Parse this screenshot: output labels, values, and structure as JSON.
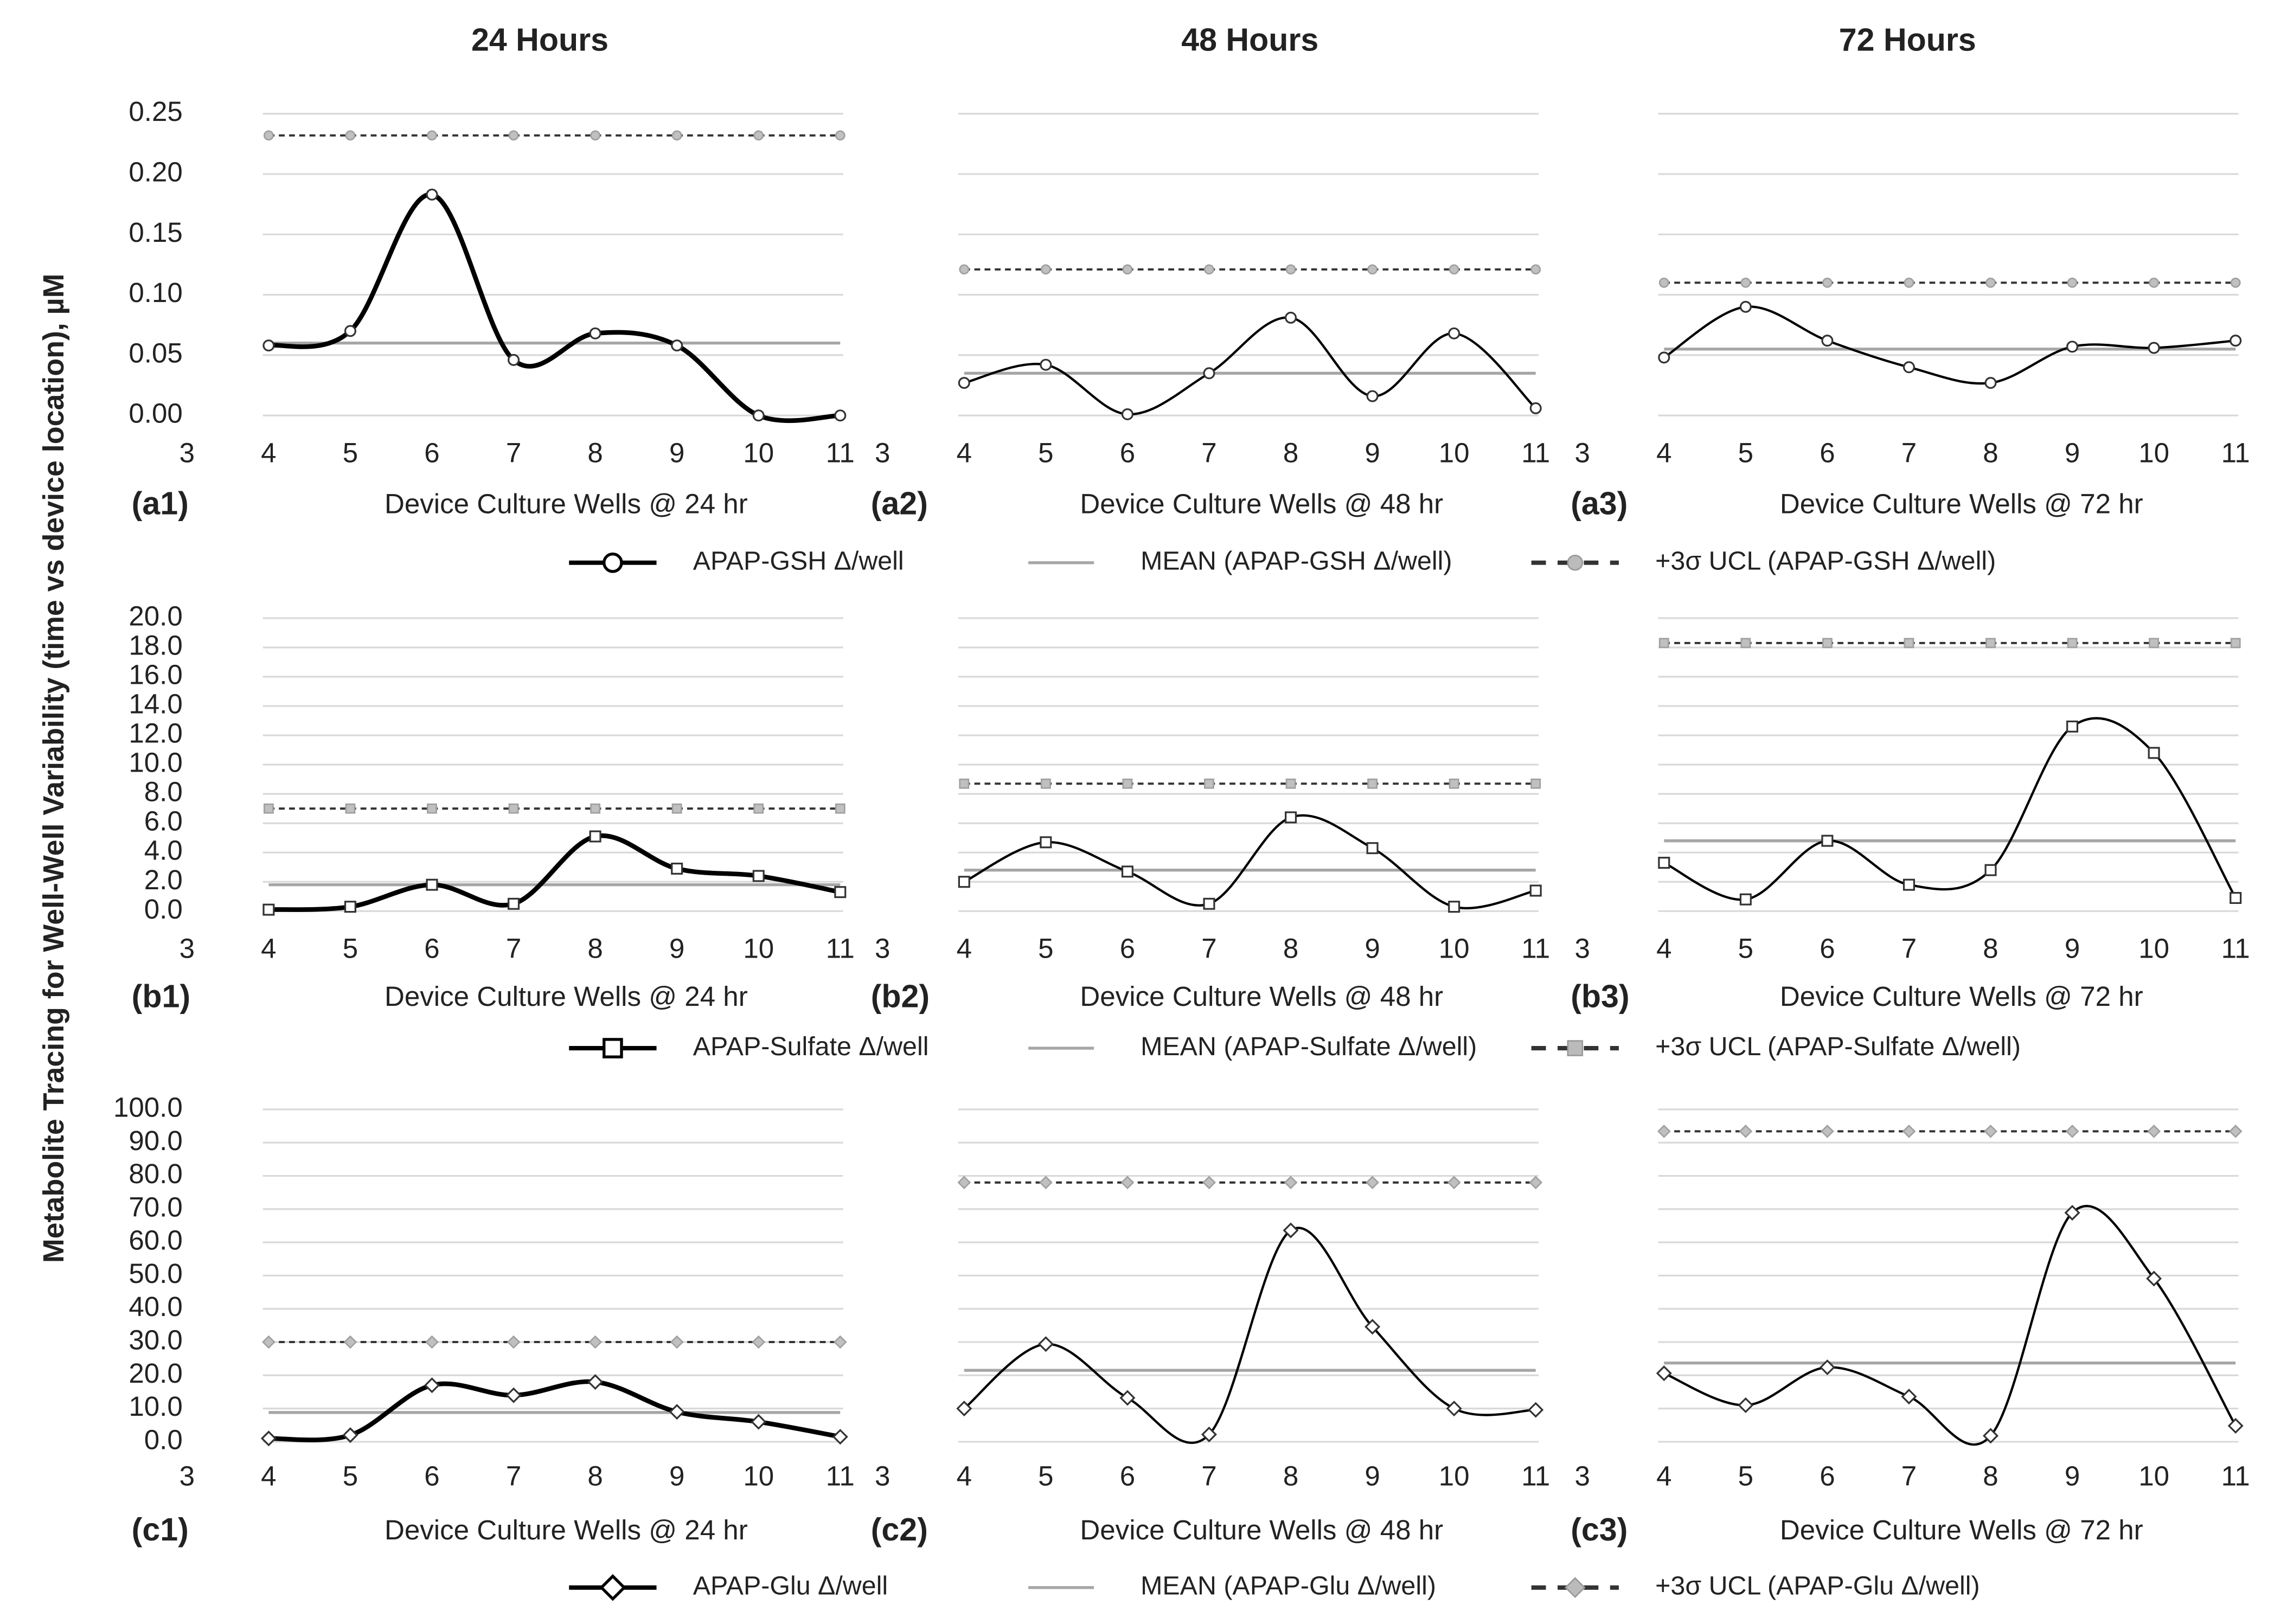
{
  "chart_data": {
    "type": "line",
    "column_titles": [
      "24 Hours",
      "48 Hours",
      "72 Hours"
    ],
    "ylabel": "Metabolite Tracing for Well-Well Variability (time vs device location), µM",
    "x": [
      4,
      5,
      6,
      7,
      8,
      9,
      10,
      11
    ],
    "xlim": [
      3,
      11
    ],
    "xticks": [
      3,
      4,
      5,
      6,
      7,
      8,
      9,
      10,
      11
    ],
    "grid": true,
    "rows": [
      {
        "marker": "circle",
        "series": [
          {
            "name": "APAP-GSH Δ/well",
            "color": "#000000"
          },
          {
            "name": "MEAN (APAP-GSH Δ/well)",
            "color": "#a6a6a6"
          },
          {
            "name": "+3σ UCL (APAP-GSH Δ/well)",
            "color": "#333333"
          }
        ],
        "ylim": [
          0,
          0.25
        ],
        "yticks": [
          {
            "value": 0,
            "label": "0.00"
          },
          {
            "value": 0.05,
            "label": "0.05"
          },
          {
            "value": 0.1,
            "label": "0.10"
          },
          {
            "value": 0.15,
            "label": "0.15"
          },
          {
            "value": 0.2,
            "label": "0.20"
          },
          {
            "value": 0.25,
            "label": "0.25"
          }
        ],
        "panels": [
          {
            "label": "(a1)",
            "xlabel": "Device Culture Wells @ 24 hr",
            "values": [
              0.058,
              0.07,
              0.183,
              0.046,
              0.068,
              0.058,
              0.0,
              0.0
            ],
            "mean": 0.06,
            "ucl": 0.232
          },
          {
            "label": "(a2)",
            "xlabel": "Device Culture Wells @ 48 hr",
            "values": [
              0.027,
              0.042,
              0.001,
              0.035,
              0.081,
              0.016,
              0.068,
              0.006
            ],
            "mean": 0.035,
            "ucl": 0.121
          },
          {
            "label": "(a3)",
            "xlabel": "Device Culture Wells @ 72 hr",
            "values": [
              0.048,
              0.09,
              0.062,
              0.04,
              0.027,
              0.057,
              0.056,
              0.062
            ],
            "mean": 0.055,
            "ucl": 0.11
          }
        ]
      },
      {
        "marker": "square",
        "series": [
          {
            "name": "APAP-Sulfate Δ/well",
            "color": "#000000"
          },
          {
            "name": "MEAN (APAP-Sulfate Δ/well)",
            "color": "#a6a6a6"
          },
          {
            "name": "+3σ UCL (APAP-Sulfate Δ/well)",
            "color": "#333333"
          }
        ],
        "ylim": [
          0,
          20
        ],
        "yticks": [
          {
            "value": 0,
            "label": "0.0"
          },
          {
            "value": 2,
            "label": "2.0"
          },
          {
            "value": 4,
            "label": "4.0"
          },
          {
            "value": 6,
            "label": "6.0"
          },
          {
            "value": 8,
            "label": "8.0"
          },
          {
            "value": 10,
            "label": "10.0"
          },
          {
            "value": 12,
            "label": "12.0"
          },
          {
            "value": 14,
            "label": "14.0"
          },
          {
            "value": 16,
            "label": "16.0"
          },
          {
            "value": 18,
            "label": "18.0"
          },
          {
            "value": 20,
            "label": "20.0"
          }
        ],
        "panels": [
          {
            "label": "(b1)",
            "xlabel": "Device Culture Wells @ 24 hr",
            "values": [
              0.1,
              0.3,
              1.8,
              0.5,
              5.1,
              2.9,
              2.4,
              1.3
            ],
            "mean": 1.8,
            "ucl": 7.0
          },
          {
            "label": "(b2)",
            "xlabel": "Device Culture Wells @ 48 hr",
            "values": [
              2.0,
              4.7,
              2.7,
              0.5,
              6.4,
              4.3,
              0.3,
              1.4
            ],
            "mean": 2.8,
            "ucl": 8.7
          },
          {
            "label": "(b3)",
            "xlabel": "Device Culture Wells @ 72 hr",
            "values": [
              3.3,
              0.8,
              4.8,
              1.8,
              2.8,
              12.6,
              10.8,
              0.9
            ],
            "mean": 4.8,
            "ucl": 18.3
          }
        ]
      },
      {
        "marker": "diamond",
        "series": [
          {
            "name": "APAP-Glu Δ/well",
            "color": "#000000"
          },
          {
            "name": "MEAN (APAP-Glu Δ/well)",
            "color": "#a6a6a6"
          },
          {
            "name": "+3σ UCL (APAP-Glu Δ/well)",
            "color": "#333333"
          }
        ],
        "ylim": [
          0,
          100
        ],
        "yticks": [
          {
            "value": 0,
            "label": "0.0"
          },
          {
            "value": 10,
            "label": "10.0"
          },
          {
            "value": 20,
            "label": "20.0"
          },
          {
            "value": 30,
            "label": "30.0"
          },
          {
            "value": 40,
            "label": "40.0"
          },
          {
            "value": 50,
            "label": "50.0"
          },
          {
            "value": 60,
            "label": "60.0"
          },
          {
            "value": 70,
            "label": "70.0"
          },
          {
            "value": 80,
            "label": "80.0"
          },
          {
            "value": 90,
            "label": "90.0"
          },
          {
            "value": 100,
            "label": "100.0"
          }
        ],
        "panels": [
          {
            "label": "(c1)",
            "xlabel": "Device Culture Wells @ 24 hr",
            "values": [
              1.0,
              2.0,
              17.0,
              14.0,
              18.0,
              9.0,
              6.0,
              1.5
            ],
            "mean": 8.8,
            "ucl": 30.0
          },
          {
            "label": "(c2)",
            "xlabel": "Device Culture Wells @ 48 hr",
            "values": [
              10.0,
              29.4,
              13.2,
              2.2,
              63.6,
              34.6,
              10.0,
              9.6
            ],
            "mean": 21.5,
            "ucl": 78.0
          },
          {
            "label": "(c3)",
            "xlabel": "Device Culture Wells @ 72 hr",
            "values": [
              20.6,
              11.0,
              22.4,
              13.6,
              1.8,
              68.9,
              49.1,
              4.8
            ],
            "mean": 23.7,
            "ucl": 93.4
          }
        ]
      }
    ]
  }
}
